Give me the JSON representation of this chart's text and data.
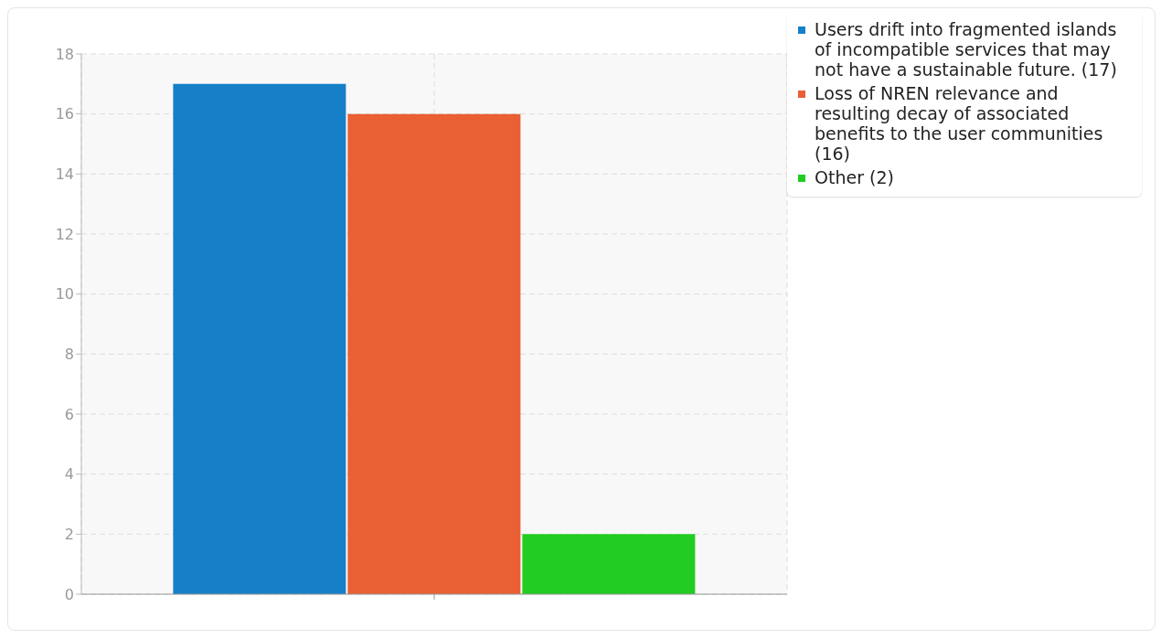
{
  "chart_data": {
    "type": "bar",
    "categories": [
      null
    ],
    "series": [
      {
        "name": "Users drift into fragmented islands of incompatible services that may not have a sustainable future. (17)",
        "color": "#1580c8",
        "values": [
          17
        ]
      },
      {
        "name": "Loss of NREN relevance and resulting decay of associated benefits to the user communities (16)",
        "color": "#e86034",
        "values": [
          16
        ]
      },
      {
        "name": "Other (2)",
        "color": "#22cc22",
        "values": [
          2
        ]
      }
    ],
    "ylim": [
      0,
      18
    ],
    "yticks": [
      0,
      2,
      4,
      6,
      8,
      10,
      12,
      14,
      16,
      18
    ],
    "grid": true,
    "legend": "top right"
  }
}
